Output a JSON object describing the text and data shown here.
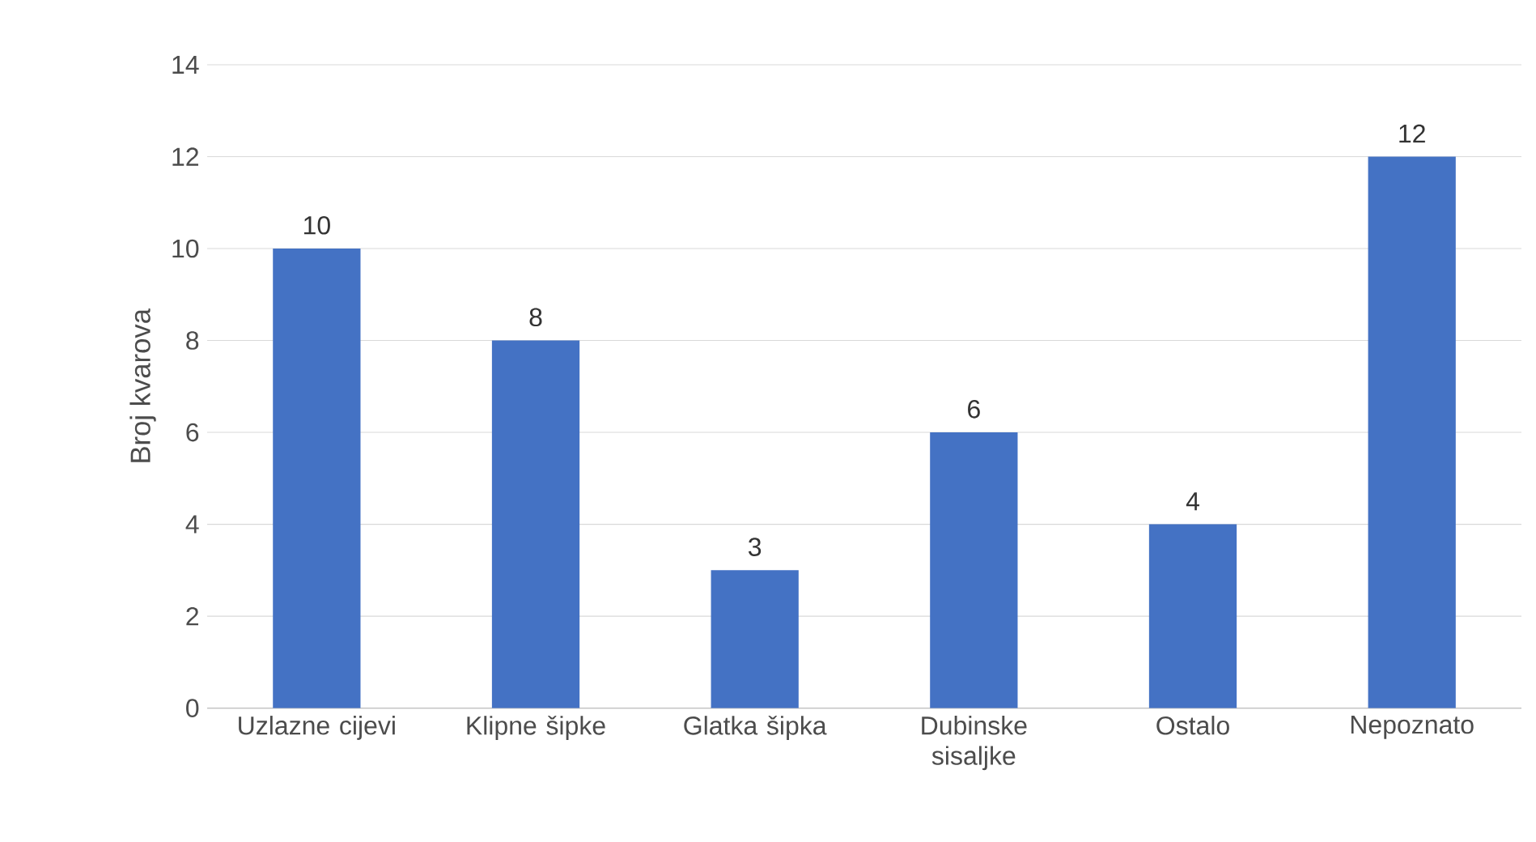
{
  "chart_data": {
    "type": "bar",
    "ylabel": "Broj kvarova",
    "categories": [
      "Uzlazne cijevi",
      "Klipne šipke",
      "Glatka šipka",
      "Dubinske sisaljke",
      "Ostalo",
      "Nepoznato"
    ],
    "values": [
      10,
      8,
      3,
      6,
      4,
      12
    ],
    "color": "#4472c4",
    "ylim": [
      0,
      14
    ],
    "yticks": [
      0,
      2,
      4,
      6,
      8,
      10,
      12,
      14
    ],
    "grid": "y",
    "data_labels": true
  }
}
